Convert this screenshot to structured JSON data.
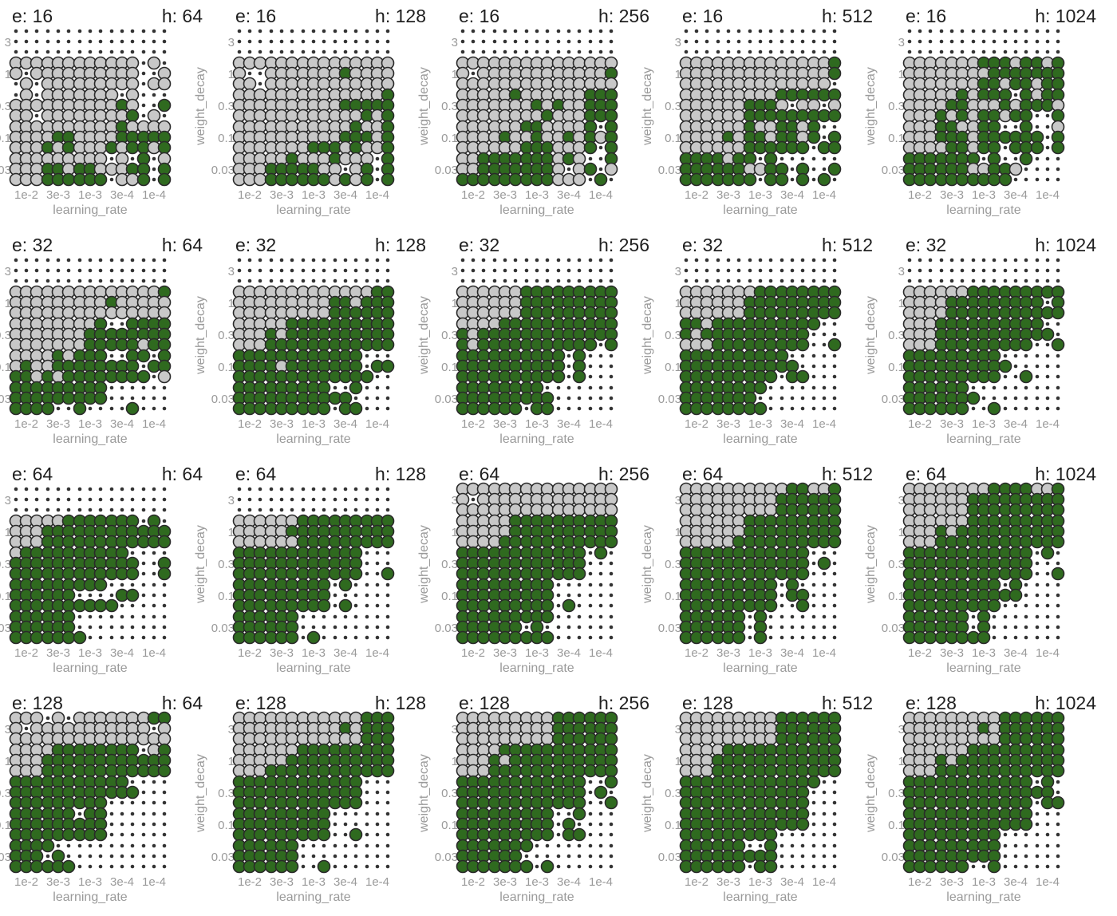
{
  "chart_data": {
    "type": "scatter",
    "layout": "small multiples, 4 rows (e) x 5 columns (h)",
    "xlabel": "learning_rate",
    "ylabel": "weight_decay",
    "x_categories": [
      "1e-2",
      "3e-3",
      "1e-3",
      "3e-4",
      "1e-4"
    ],
    "y_categories": [
      "3",
      "1",
      "0.3",
      "0.1",
      "0.03"
    ],
    "legend": "none",
    "grid": false,
    "row_param": "e",
    "row_values": [
      "16",
      "32",
      "64",
      "128"
    ],
    "col_param": "h",
    "col_values": [
      "64",
      "128",
      "256",
      "512",
      "1024"
    ],
    "cell_encoding": "each cell is a 3x3 pattern of 9 runs; 0 = not completed (small dot), 1 = completed-not-reached (gray circle), 2 = reached target (green circle)",
    "colors": {
      "green": "#2f6a1f",
      "gray": "#c8c8c8",
      "outline": "#2a2a2a",
      "dot": "#333333"
    },
    "panels": [
      {
        "row": 0,
        "col": 0,
        "e": "16",
        "h": "64",
        "cells": [
          [
            "000000000",
            "000000000",
            "000000000",
            "000000000",
            "000000000"
          ],
          [
            "111101010",
            "111111111",
            "111111111",
            "111111111",
            "010001011"
          ],
          [
            "010111110",
            "111111111",
            "111111111",
            "101121112",
            "000002010"
          ],
          [
            "111111111",
            "111122212",
            "111111111",
            "121122212",
            "111222212"
          ],
          [
            "111111111",
            "111221222",
            "111221222",
            "010112011",
            "201202202"
          ]
        ]
      },
      {
        "row": 0,
        "col": 1,
        "e": "16",
        "h": "128",
        "cells": [
          [
            "000000000",
            "000000000",
            "000000000",
            "000000000",
            "000000000"
          ],
          [
            "111100110",
            "111111111",
            "111111111",
            "111121111",
            "111111111"
          ],
          [
            "111111111",
            "111111111",
            "111111111",
            "111122111",
            "112222212"
          ],
          [
            "111111111",
            "111111111",
            "111111122",
            "112122212",
            "112212112"
          ],
          [
            "111111111",
            "112222222",
            "111221222",
            "211101121",
            "102202202"
          ]
        ]
      },
      {
        "row": 0,
        "col": 2,
        "e": "16",
        "h": "256",
        "cells": [
          [
            "000000000",
            "000000000",
            "000000000",
            "000000000",
            "000000000"
          ],
          [
            "111101111",
            "111111111",
            "111111111",
            "111111111",
            "111112111"
          ],
          [
            "111111111",
            "112111111",
            "111121112",
            "111211111",
            "222222222"
          ],
          [
            "111111111",
            "111121111",
            "221121222",
            "111121111",
            "202212202"
          ],
          [
            "112112222",
            "222222222",
            "222222222",
            "121101111",
            "002201020"
          ]
        ]
      },
      {
        "row": 0,
        "col": 3,
        "e": "16",
        "h": "512",
        "cells": [
          [
            "000000000",
            "000000000",
            "000000000",
            "000000000",
            "000000000"
          ],
          [
            "111111111",
            "111111111",
            "111111111",
            "111111111",
            "112112110"
          ],
          [
            "111111111",
            "111111111",
            "111222222",
            "222101222",
            "222101222"
          ],
          [
            "111111111",
            "111121111",
            "211221222",
            "221221222",
            "200202022"
          ],
          [
            "222222222",
            "212222222",
            "202112202",
            "000202202",
            "000002020"
          ]
        ]
      },
      {
        "row": 0,
        "col": 4,
        "e": "16",
        "h": "1024",
        "cells": [
          [
            "000000000",
            "000000000",
            "000000000",
            "000000000",
            "000000000"
          ],
          [
            "111111111",
            "111111111",
            "122112122",
            "212222122",
            "212222122"
          ],
          [
            "111111111",
            "112122212",
            "122111122",
            "202212122",
            "122221002"
          ],
          [
            "111111111",
            "221222122",
            "122122122",
            "002222022",
            "001202202"
          ],
          [
            "222222222",
            "222222222",
            "202112222",
            "002210200",
            "000000000"
          ]
        ]
      },
      {
        "row": 1,
        "col": 0,
        "e": "32",
        "h": "64",
        "cells": [
          [
            "000000000",
            "000000000",
            "000000000",
            "000000000",
            "000000000"
          ],
          [
            "111111111",
            "111111111",
            "111111111",
            "111211111",
            "112111111"
          ],
          [
            "111111111",
            "111111111",
            "112122122",
            "002222222",
            "222222122"
          ],
          [
            "111121221",
            "121122212",
            "222222222",
            "002222222",
            "202022201"
          ],
          [
            "222222222",
            "222222200",
            "222222200",
            "000000002",
            "000000000"
          ]
        ]
      },
      {
        "row": 1,
        "col": 1,
        "e": "32",
        "h": "128",
        "cells": [
          [
            "000000000",
            "000000000",
            "000000000",
            "000000000",
            "000000000"
          ],
          [
            "111111111",
            "111111111",
            "111111111",
            "111221222",
            "122222222"
          ],
          [
            "111111111",
            "112212222",
            "222222222",
            "222222222",
            "222222222"
          ],
          [
            "222222222",
            "222212222",
            "222222222",
            "222222222",
            "000022200"
          ],
          [
            "222222222",
            "222222222",
            "222222222",
            "002220022",
            "000000000"
          ]
        ]
      },
      {
        "row": 1,
        "col": 2,
        "e": "32",
        "h": "256",
        "cells": [
          [
            "000000000",
            "000000000",
            "000000000",
            "000000000",
            "000000000"
          ],
          [
            "111111111",
            "111111111",
            "222222222",
            "222222222",
            "222222222"
          ],
          [
            "111212212",
            "122222222",
            "222222222",
            "222222222",
            "222222202"
          ],
          [
            "222222222",
            "222222222",
            "222222222",
            "202202202",
            "000000000"
          ],
          [
            "222222222",
            "222222222",
            "220222022",
            "000000000",
            "000000000"
          ]
        ]
      },
      {
        "row": 1,
        "col": 3,
        "e": "32",
        "h": "512",
        "cells": [
          [
            "000000000",
            "000000000",
            "000000000",
            "000000000",
            "000000000"
          ],
          [
            "111111111",
            "111111111",
            "122222222",
            "222222222",
            "222222222"
          ],
          [
            "221212111",
            "222222222",
            "222222222",
            "222222222",
            "200000002"
          ],
          [
            "222222222",
            "222222222",
            "222222222",
            "200220022",
            "000000000"
          ],
          [
            "222222222",
            "222222222",
            "220200220",
            "000000000",
            "000000000"
          ]
        ]
      },
      {
        "row": 1,
        "col": 4,
        "e": "32",
        "h": "1024",
        "cells": [
          [
            "000000000",
            "000000000",
            "000000000",
            "000000000",
            "000000000"
          ],
          [
            "111111111",
            "111122122",
            "222222222",
            "222222222",
            "222202222"
          ],
          [
            "111111111",
            "222222222",
            "222222222",
            "222222222",
            "200220002"
          ],
          [
            "222222222",
            "222222222",
            "222222222",
            "000200002",
            "000000000"
          ],
          [
            "222222222",
            "222222222",
            "000200002",
            "000000000",
            "000000000"
          ]
        ]
      },
      {
        "row": 2,
        "col": 0,
        "e": "64",
        "h": "64",
        "cells": [
          [
            "000000000",
            "000000000",
            "000000000",
            "000000000",
            "000000000"
          ],
          [
            "111111111",
            "112222222",
            "222222222",
            "222222222",
            "020222222"
          ],
          [
            "122222222",
            "222222222",
            "222222222",
            "220222222",
            "000002002"
          ],
          [
            "222222222",
            "222222222",
            "222000222",
            "000022200",
            "000000000"
          ],
          [
            "222222222",
            "222222222",
            "000000200",
            "000000000",
            "000000000"
          ]
        ]
      },
      {
        "row": 2,
        "col": 1,
        "e": "64",
        "h": "128",
        "cells": [
          [
            "000000000",
            "000000000",
            "000000000",
            "000000000",
            "000000000"
          ],
          [
            "111111111",
            "111112111",
            "222222222",
            "222222222",
            "222222222"
          ],
          [
            "222222222",
            "222222222",
            "222222222",
            "222222222",
            "000000002"
          ],
          [
            "222222222",
            "222222222",
            "222222222",
            "020000020",
            "000000000"
          ],
          [
            "222222222",
            "222222222",
            "000000020",
            "000000000",
            "000000000"
          ]
        ]
      },
      {
        "row": 2,
        "col": 2,
        "e": "64",
        "h": "256",
        "cells": [
          [
            "111101111",
            "111111111",
            "111111111",
            "111111111",
            "111111111"
          ],
          [
            "111111111",
            "112112122",
            "222222222",
            "222222222",
            "222222222"
          ],
          [
            "222222222",
            "222222222",
            "222222222",
            "222222222",
            "020000000"
          ],
          [
            "222222222",
            "222222222",
            "222222222",
            "000000020",
            "000000000"
          ],
          [
            "222222222",
            "222222222",
            "222020222",
            "000000000",
            "000000000"
          ]
        ]
      },
      {
        "row": 2,
        "col": 3,
        "e": "64",
        "h": "512",
        "cells": [
          [
            "111111111",
            "111111111",
            "111111111",
            "122222222",
            "112222222"
          ],
          [
            "111111111",
            "111111112",
            "222222222",
            "222222222",
            "222222222"
          ],
          [
            "222222222",
            "222222222",
            "222222222",
            "222222222",
            "000020000"
          ],
          [
            "222222222",
            "222222222",
            "222222222",
            "020022002",
            "000000000"
          ],
          [
            "222222222",
            "222222222",
            "020020020",
            "000000000",
            "000000000"
          ]
        ]
      },
      {
        "row": 2,
        "col": 4,
        "e": "64",
        "h": "1024",
        "cells": [
          [
            "111111111",
            "111111111",
            "112222222",
            "222222222",
            "112222222"
          ],
          [
            "111111111",
            "111212222",
            "222222222",
            "222222222",
            "222222222"
          ],
          [
            "222222222",
            "222222222",
            "222222222",
            "222222222",
            "020000002"
          ],
          [
            "222222222",
            "222222222",
            "222222222",
            "020220000",
            "000000000"
          ],
          [
            "222222222",
            "222222222",
            "020020220",
            "000000000",
            "000000000"
          ]
        ]
      },
      {
        "row": 3,
        "col": 0,
        "e": "128",
        "h": "64",
        "cells": [
          [
            "111101111",
            "010111111",
            "111111111",
            "111111111",
            "122101111"
          ],
          [
            "111111111",
            "122222222",
            "222222222",
            "222222222",
            "012222222"
          ],
          [
            "222222222",
            "222222222",
            "222222222",
            "220222000",
            "000000000"
          ],
          [
            "222222222",
            "222222222",
            "022222222",
            "000000000",
            "000000000"
          ],
          [
            "222222222",
            "200020222",
            "000000000",
            "000000000",
            "000000000"
          ]
        ]
      },
      {
        "row": 3,
        "col": 1,
        "e": "128",
        "h": "128",
        "cells": [
          [
            "111111111",
            "111111111",
            "111111111",
            "111121111",
            "222222222"
          ],
          [
            "111111111",
            "111112222",
            "222222222",
            "222222222",
            "222222222"
          ],
          [
            "222222222",
            "222222222",
            "222222222",
            "222222222",
            "000000000"
          ],
          [
            "222222222",
            "222222222",
            "222222222",
            "000000002",
            "000000000"
          ],
          [
            "222222222",
            "222222222",
            "000000002",
            "000000000",
            "000000000"
          ]
        ]
      },
      {
        "row": 3,
        "col": 2,
        "e": "128",
        "h": "256",
        "cells": [
          [
            "111111111",
            "111111111",
            "111111111",
            "222222222",
            "222222222"
          ],
          [
            "111111111",
            "122212222",
            "222222222",
            "222222222",
            "222222222"
          ],
          [
            "222222222",
            "222222222",
            "222222222",
            "222222222",
            "002020002"
          ],
          [
            "222222222",
            "222222222",
            "222222222",
            "002020022",
            "000000000"
          ],
          [
            "222222222",
            "222222222",
            "200000202",
            "000000000",
            "000000000"
          ]
        ]
      },
      {
        "row": 3,
        "col": 3,
        "e": "128",
        "h": "512",
        "cells": [
          [
            "111111111",
            "111111111",
            "111111111",
            "222222222",
            "222222222"
          ],
          [
            "111111111",
            "122222222",
            "222222222",
            "222222222",
            "222222222"
          ],
          [
            "222222222",
            "222222222",
            "222222222",
            "222222222",
            "200000000"
          ],
          [
            "222222222",
            "222222222",
            "222222222",
            "222222000",
            "000000000"
          ],
          [
            "222222222",
            "222222222",
            "002222022",
            "000000000",
            "000000000"
          ]
        ]
      },
      {
        "row": 3,
        "col": 4,
        "e": "128",
        "h": "1024",
        "cells": [
          [
            "111111111",
            "111111111",
            "111121111",
            "222222222",
            "222222222"
          ],
          [
            "111111111",
            "111212222",
            "222222222",
            "222222222",
            "222222222"
          ],
          [
            "222222222",
            "222222222",
            "222222222",
            "222222222",
            "020220022"
          ],
          [
            "222222222",
            "222222222",
            "222222222",
            "222222000",
            "000000000"
          ],
          [
            "222222222",
            "222222222",
            "222222002",
            "000000000",
            "000000000"
          ]
        ]
      }
    ]
  }
}
